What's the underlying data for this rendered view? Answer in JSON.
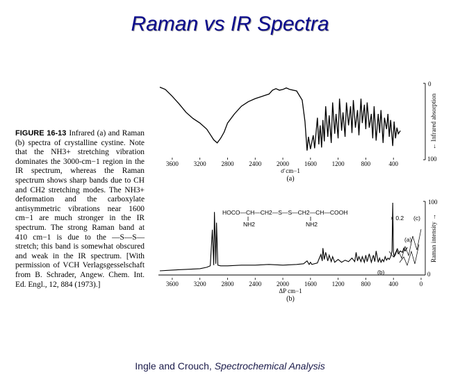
{
  "slide": {
    "title": "Raman vs IR Spectra",
    "credit_plain": "Ingle and Crouch, ",
    "credit_italic": "Spectrochemical Analysis"
  },
  "caption": {
    "figure_label": "FIGURE 16-13",
    "text": "Infrared (a) and Raman (b) spectra of crystalline cystine. Note that the NH3+ stretching vibration dominates the 3000-cm−1 region in the IR spectrum, whereas the Raman spectrum shows sharp bands due to CH and CH2 stretching modes. The NH3+ deformation and the carboxylate antisymmetric vibrations near 1600 cm−1 are much stronger in the IR spectrum. The strong Raman band at 410 cm−1 is due to the —S—S— stretch; this band is somewhat obscured and weak in the IR spectrum. [With permission of VCH Verlagsgesselschaft from B. Schrader, Angew. Chem. Int. Ed. Engl., 12, 884 (1973).]"
  },
  "chart_data": [
    {
      "type": "line",
      "panel_label": "(a)",
      "xlabel": "σ̄ cm−1",
      "ylabel": "← Infrared absorption",
      "x_tick_labels": [
        "3600",
        "3200",
        "2800",
        "2400",
        "2000",
        "1600",
        "1200",
        "800",
        "400"
      ],
      "y_tick_labels": [
        "0",
        "100"
      ],
      "xlim": [
        3800,
        0
      ],
      "ylim": [
        100,
        0
      ],
      "series": [
        {
          "x": [
            3780,
            3700,
            3600,
            3500,
            3400,
            3300,
            3200,
            3100,
            3050,
            3000,
            2950,
            2900,
            2850,
            2800,
            2700,
            2600,
            2500,
            2400,
            2300,
            2200,
            2150,
            2100,
            2050,
            2000,
            1950,
            1900,
            1800,
            1720,
            1680,
            1650,
            1630,
            1600,
            1560,
            1540,
            1500,
            1480,
            1460,
            1440,
            1420,
            1400,
            1380,
            1350,
            1330,
            1300,
            1280,
            1250,
            1230,
            1200,
            1180,
            1150,
            1130,
            1100,
            1080,
            1050,
            1020,
            1000,
            980,
            950,
            920,
            900,
            870,
            850,
            820,
            800,
            780,
            750,
            720,
            700,
            680,
            650,
            620,
            600,
            580,
            550,
            530,
            500,
            480,
            460,
            440,
            410,
            390,
            370,
            350,
            330,
            300
          ],
          "y": [
            5,
            8,
            17,
            27,
            38,
            46,
            52,
            60,
            67,
            74,
            78,
            72,
            64,
            52,
            40,
            30,
            24,
            20,
            17,
            14,
            9,
            7,
            9,
            8,
            6,
            8,
            10,
            22,
            50,
            88,
            70,
            86,
            68,
            85,
            45,
            80,
            55,
            84,
            48,
            76,
            30,
            70,
            42,
            78,
            25,
            66,
            40,
            72,
            20,
            62,
            38,
            70,
            25,
            55,
            30,
            65,
            22,
            58,
            35,
            68,
            20,
            52,
            28,
            60,
            25,
            58,
            40,
            72,
            30,
            75,
            40,
            65,
            35,
            78,
            45,
            60,
            40,
            70,
            48,
            82,
            50,
            72,
            58,
            66,
            62
          ]
        }
      ]
    },
    {
      "type": "line",
      "panel_label": "(b)",
      "xlabel": "ΔP cm−1",
      "ylabel": "Raman intensity →",
      "x_tick_labels": [
        "3600",
        "3200",
        "2800",
        "2400",
        "2000",
        "1600",
        "1200",
        "800",
        "400",
        "0"
      ],
      "y_tick_labels": [
        "0",
        "100"
      ],
      "xlim": [
        3800,
        0
      ],
      "ylim": [
        0,
        100
      ],
      "annotations": {
        "structure_top": "HOCO—CH—CH2—S—S—CH2—CH—COOH",
        "nh2_left": "NH2",
        "nh2_right": "NH2",
        "scale_note": "× 0.2",
        "inset_c": "(c)",
        "inset_a": "(a)",
        "inset_b": "(b)"
      },
      "series": [
        {
          "x": [
            3780,
            3600,
            3400,
            3200,
            3100,
            3050,
            3020,
            3000,
            2990,
            2970,
            2960,
            2940,
            2900,
            2800,
            2600,
            2400,
            2200,
            2000,
            1800,
            1700,
            1650,
            1620,
            1600,
            1580,
            1500,
            1480,
            1450,
            1430,
            1420,
            1400,
            1380,
            1350,
            1330,
            1300,
            1280,
            1250,
            1200,
            1150,
            1100,
            1050,
            1000,
            960,
            940,
            920,
            900,
            870,
            850,
            820,
            800,
            780,
            750,
            720,
            690,
            670,
            650,
            620,
            600,
            580,
            560,
            540,
            520,
            500,
            480,
            460,
            440,
            420,
            410,
            400,
            390,
            370,
            350,
            330,
            300,
            270,
            250,
            230,
            200
          ],
          "y": [
            2,
            3,
            4,
            5,
            7,
            9,
            60,
            10,
            85,
            12,
            70,
            10,
            9,
            9,
            10,
            10,
            11,
            10,
            11,
            12,
            16,
            11,
            14,
            11,
            13,
            18,
            25,
            16,
            34,
            18,
            28,
            16,
            24,
            15,
            22,
            14,
            18,
            14,
            17,
            15,
            20,
            15,
            28,
            16,
            22,
            15,
            22,
            14,
            24,
            15,
            26,
            14,
            24,
            15,
            30,
            14,
            20,
            14,
            18,
            15,
            22,
            17,
            20,
            18,
            22,
            30,
            98,
            28,
            22,
            25,
            32,
            26,
            30,
            28,
            34,
            30,
            35
          ]
        }
      ]
    }
  ]
}
